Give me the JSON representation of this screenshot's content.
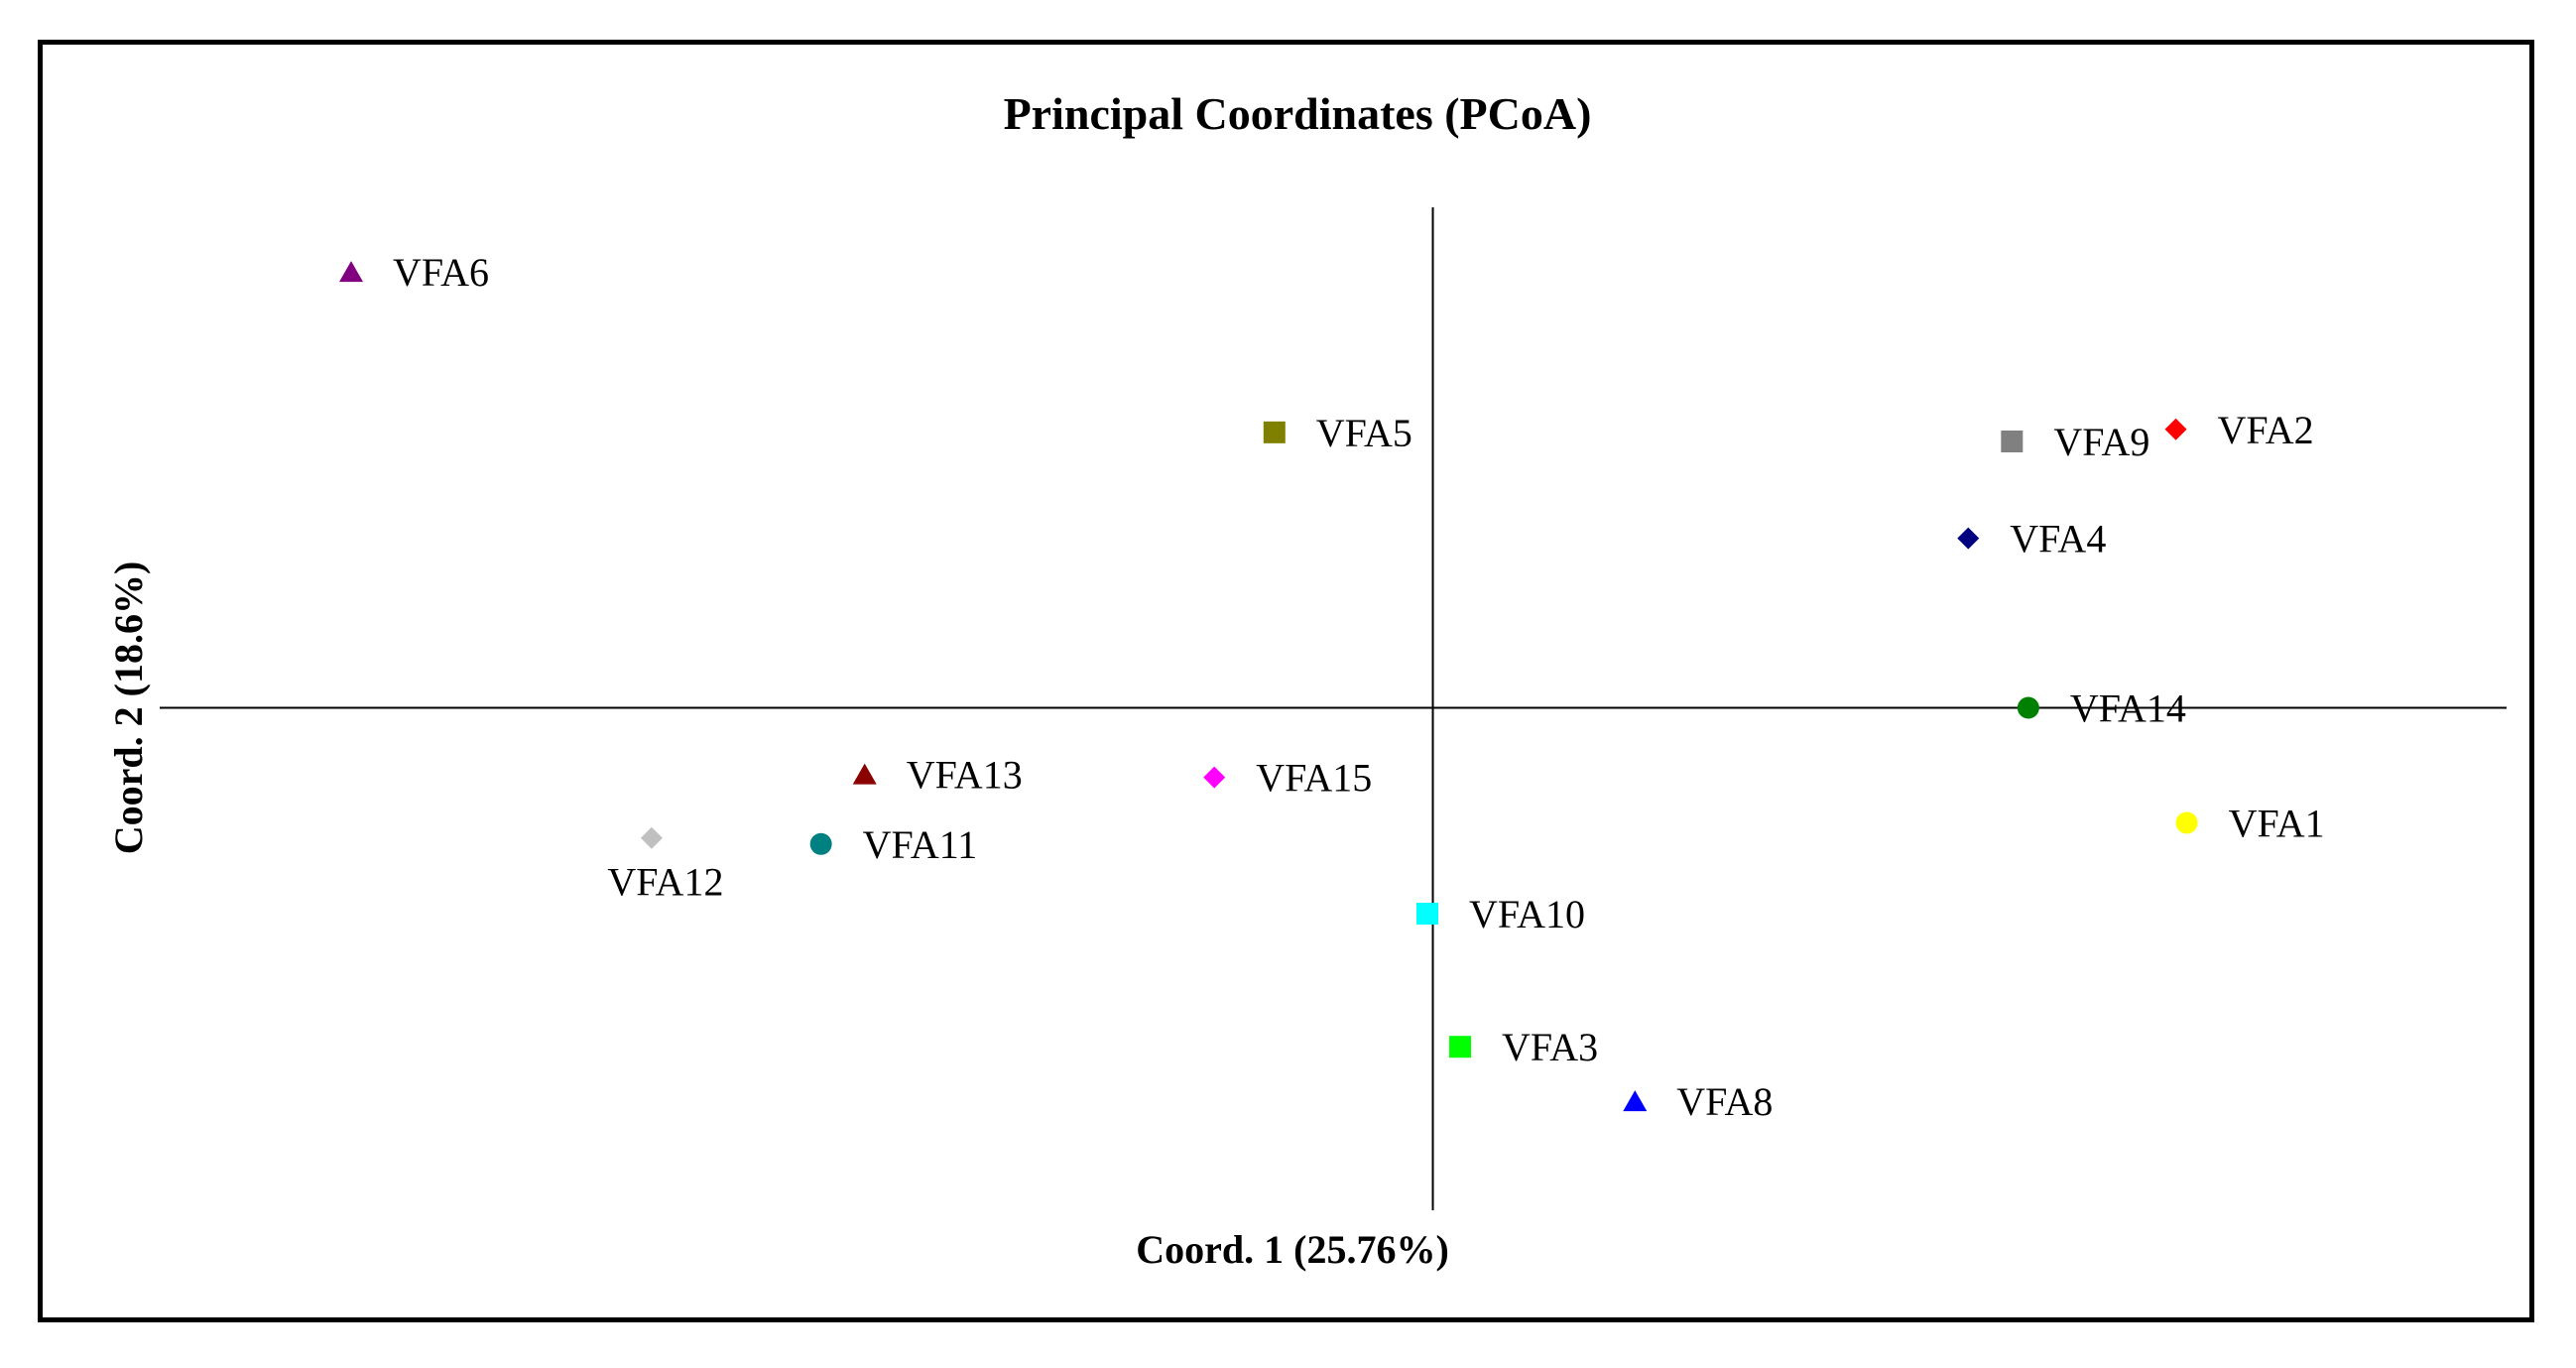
{
  "chart_data": {
    "type": "scatter",
    "title": "Principal  Coordinates  (PCoA)",
    "xlabel": "Coord.  1 (25.76%)",
    "ylabel": "Coord.  2 (18.6%)",
    "xlim": [
      -1.0,
      0.97
    ],
    "ylim": [
      -0.83,
      0.83
    ],
    "grid": false,
    "legend": "none",
    "series": [
      {
        "name": "VFA1",
        "x": 0.69,
        "y": -0.19,
        "marker": "circle",
        "color": "#ffff00",
        "label_pos": "right"
      },
      {
        "name": "VFA2",
        "x": 0.68,
        "y": 0.46,
        "marker": "diamond",
        "color": "#ff0000",
        "label_pos": "right"
      },
      {
        "name": "VFA3",
        "x": 0.025,
        "y": -0.56,
        "marker": "square",
        "color": "#00ff00",
        "label_pos": "right"
      },
      {
        "name": "VFA4",
        "x": 0.49,
        "y": 0.28,
        "marker": "diamond",
        "color": "#000080",
        "label_pos": "right"
      },
      {
        "name": "VFA5",
        "x": -0.145,
        "y": 0.455,
        "marker": "square",
        "color": "#808000",
        "label_pos": "right"
      },
      {
        "name": "VFA6",
        "x": -0.99,
        "y": 0.72,
        "marker": "triangle",
        "color": "#800080",
        "label_pos": "right"
      },
      {
        "name": "VFA8",
        "x": 0.185,
        "y": -0.65,
        "marker": "triangle",
        "color": "#0000ff",
        "label_pos": "right"
      },
      {
        "name": "VFA9",
        "x": 0.53,
        "y": 0.44,
        "marker": "square",
        "color": "#808080",
        "label_pos": "right"
      },
      {
        "name": "VFA10",
        "x": -0.005,
        "y": -0.34,
        "marker": "square",
        "color": "#00ffff",
        "label_pos": "right"
      },
      {
        "name": "VFA11",
        "x": -0.56,
        "y": -0.225,
        "marker": "circle",
        "color": "#008080",
        "label_pos": "right"
      },
      {
        "name": "VFA12",
        "x": -0.715,
        "y": -0.215,
        "marker": "diamond",
        "color": "#c0c0c0",
        "label_pos": "below"
      },
      {
        "name": "VFA13",
        "x": -0.52,
        "y": -0.11,
        "marker": "triangle",
        "color": "#8b0000",
        "label_pos": "right"
      },
      {
        "name": "VFA14",
        "x": 0.545,
        "y": 0.0,
        "marker": "circle",
        "color": "#008000",
        "label_pos": "right"
      },
      {
        "name": "VFA15",
        "x": -0.2,
        "y": -0.115,
        "marker": "diamond",
        "color": "#ff00ff",
        "label_pos": "right"
      }
    ]
  }
}
